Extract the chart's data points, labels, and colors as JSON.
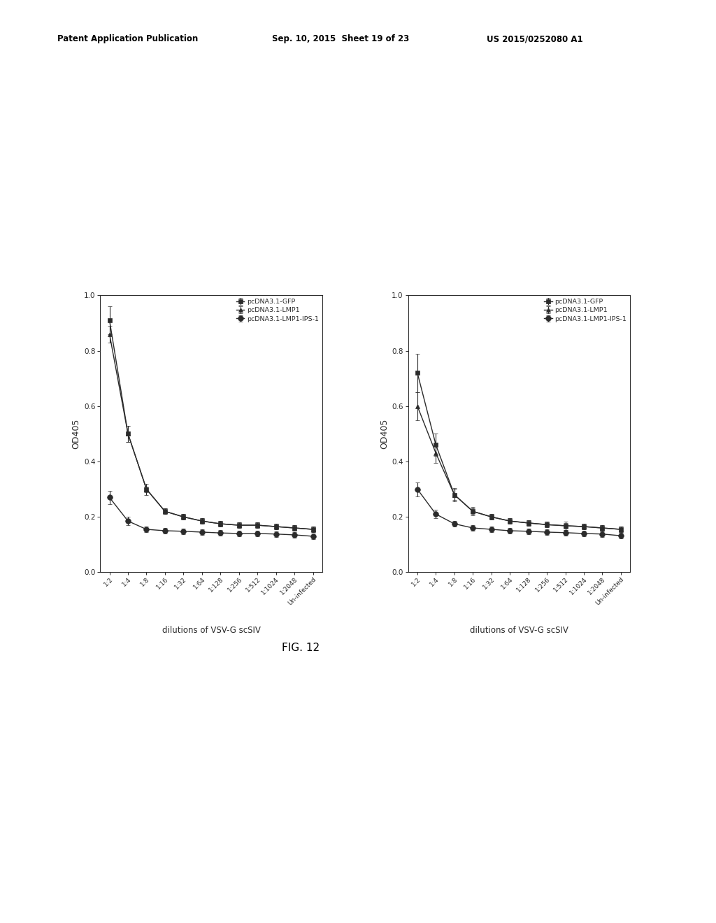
{
  "x_labels": [
    "1:2",
    "1:4",
    "1:8",
    "1:16",
    "1:32",
    "1:64",
    "1:128",
    "1:256",
    "1:512",
    "1:1024",
    "1:2048",
    "Un-infected"
  ],
  "ylabel": "OD405",
  "xlabel": "dilutions of VSV-G scSIV",
  "fig_label": "FIG. 12",
  "header_left": "Patent Application Publication",
  "header_mid": "Sep. 10, 2015  Sheet 19 of 23",
  "header_right": "US 2015/0252080 A1",
  "background_color": "#ffffff",
  "left_chart": {
    "GFP_y": [
      0.91,
      0.5,
      0.3,
      0.22,
      0.2,
      0.185,
      0.175,
      0.17,
      0.17,
      0.165,
      0.16,
      0.155
    ],
    "GFP_err": [
      0.05,
      0.03,
      0.02,
      0.01,
      0.01,
      0.01,
      0.01,
      0.01,
      0.01,
      0.01,
      0.01,
      0.01
    ],
    "LMP1_y": [
      0.86,
      0.5,
      0.3,
      0.22,
      0.2,
      0.185,
      0.175,
      0.17,
      0.17,
      0.165,
      0.16,
      0.155
    ],
    "LMP1_err": [
      0.03,
      0.03,
      0.01,
      0.01,
      0.01,
      0.01,
      0.01,
      0.01,
      0.01,
      0.01,
      0.01,
      0.01
    ],
    "IPS_y": [
      0.27,
      0.185,
      0.155,
      0.15,
      0.148,
      0.145,
      0.142,
      0.14,
      0.14,
      0.138,
      0.135,
      0.13
    ],
    "IPS_err": [
      0.025,
      0.015,
      0.01,
      0.01,
      0.01,
      0.01,
      0.01,
      0.01,
      0.01,
      0.01,
      0.01,
      0.01
    ],
    "ylim": [
      0.0,
      1.0
    ],
    "yticks": [
      0.0,
      0.2,
      0.4,
      0.6,
      0.8,
      1.0
    ]
  },
  "right_chart": {
    "GFP_y": [
      0.72,
      0.46,
      0.28,
      0.22,
      0.2,
      0.185,
      0.178,
      0.172,
      0.168,
      0.165,
      0.16,
      0.155
    ],
    "GFP_err": [
      0.07,
      0.04,
      0.025,
      0.015,
      0.01,
      0.01,
      0.01,
      0.01,
      0.015,
      0.01,
      0.01,
      0.01
    ],
    "LMP1_y": [
      0.6,
      0.43,
      0.28,
      0.22,
      0.2,
      0.185,
      0.178,
      0.172,
      0.168,
      0.165,
      0.16,
      0.155
    ],
    "LMP1_err": [
      0.05,
      0.035,
      0.02,
      0.01,
      0.01,
      0.01,
      0.01,
      0.01,
      0.01,
      0.01,
      0.01,
      0.01
    ],
    "IPS_y": [
      0.3,
      0.21,
      0.175,
      0.16,
      0.155,
      0.15,
      0.148,
      0.145,
      0.143,
      0.14,
      0.138,
      0.132
    ],
    "IPS_err": [
      0.025,
      0.015,
      0.01,
      0.01,
      0.01,
      0.01,
      0.01,
      0.01,
      0.01,
      0.01,
      0.01,
      0.01
    ],
    "ylim": [
      0.0,
      1.0
    ],
    "yticks": [
      0.0,
      0.2,
      0.4,
      0.6,
      0.8,
      1.0
    ]
  },
  "legend_labels": [
    "pcDNA3.1-GFP",
    "pcDNA3.1-LMP1",
    "pcDNA3.1-LMP1-IPS-1"
  ],
  "color": "#2b2b2b",
  "linewidth": 1.0,
  "markersize": 4.5,
  "capsize": 2,
  "elinewidth": 0.8
}
